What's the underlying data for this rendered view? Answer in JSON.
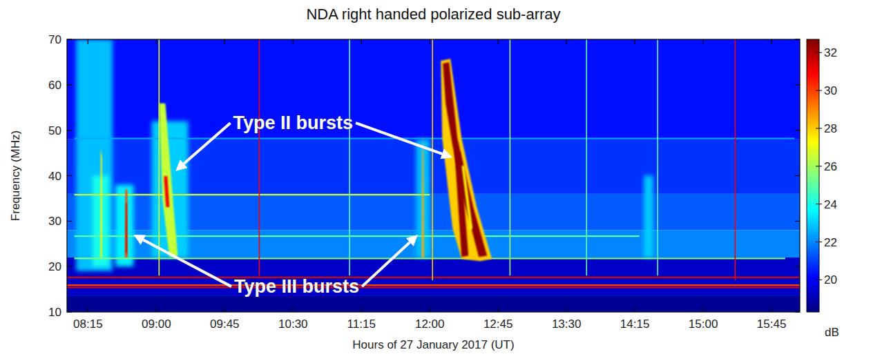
{
  "chart_data": {
    "type": "heatmap",
    "title": "NDA right handed polarized sub-array",
    "x_label": "Hours of 27 January 2017 (UT)",
    "y_label": "Frequency (MHz)",
    "xlim": [
      8.02,
      16.06
    ],
    "ylim": [
      10,
      70
    ],
    "xticks": [
      {
        "value": 8.25,
        "label": "08:15"
      },
      {
        "value": 9,
        "label": "09:00"
      },
      {
        "value": 9.75,
        "label": "09:45"
      },
      {
        "value": 10.5,
        "label": "10:30"
      },
      {
        "value": 11.25,
        "label": "11:15"
      },
      {
        "value": 12,
        "label": "12:00"
      },
      {
        "value": 12.75,
        "label": "12:45"
      },
      {
        "value": 13.5,
        "label": "13:30"
      },
      {
        "value": 14.25,
        "label": "14:15"
      },
      {
        "value": 15,
        "label": "15:00"
      },
      {
        "value": 15.75,
        "label": "15:45"
      }
    ],
    "yticks": [
      10,
      20,
      30,
      40,
      50,
      60,
      70
    ],
    "colorbar": {
      "label": "dB",
      "range": [
        18.3,
        32.7
      ],
      "ticks": [
        20,
        22,
        24,
        26,
        28,
        30,
        32
      ]
    },
    "bands": [
      {
        "f": [
          10,
          13.5
        ],
        "value": 18.6
      },
      {
        "f": [
          13.5,
          22
        ],
        "value": 19.3
      },
      {
        "f": [
          22,
          28
        ],
        "value": 22.0
      },
      {
        "f": [
          28,
          36
        ],
        "value": 21.4
      },
      {
        "f": [
          36,
          48
        ],
        "value": 20.8
      },
      {
        "f": [
          48,
          70
        ],
        "value": 20.3
      }
    ],
    "patches": [
      {
        "t": [
          8.12,
          8.52
        ],
        "f": [
          19,
          70
        ],
        "value": 22.8
      },
      {
        "t": [
          8.3,
          8.48
        ],
        "f": [
          20,
          40
        ],
        "value": 24.0
      },
      {
        "t": [
          8.55,
          8.75
        ],
        "f": [
          20,
          38
        ],
        "value": 23.5
      },
      {
        "t": [
          8.95,
          9.35
        ],
        "f": [
          22,
          52
        ],
        "value": 23.0
      },
      {
        "t": [
          11.85,
          12.0
        ],
        "f": [
          22,
          48
        ],
        "value": 22.8
      },
      {
        "t": [
          14.35,
          14.45
        ],
        "f": [
          22,
          40
        ],
        "value": 23.0
      }
    ],
    "hlines": [
      {
        "f": 15.4,
        "t": [
          8.02,
          16.06
        ],
        "value": 31.5
      },
      {
        "f": 15.9,
        "t": [
          8.02,
          16.06
        ],
        "value": 30.0
      },
      {
        "f": 17.6,
        "t": [
          8.02,
          16.06
        ],
        "value": 31.5
      },
      {
        "f": 21.8,
        "t": [
          8.1,
          15.9
        ],
        "value": 25.5
      },
      {
        "f": 26.7,
        "t": [
          8.1,
          14.3
        ],
        "value": 25.0
      },
      {
        "f": 35.8,
        "t": [
          8.1,
          12.0
        ],
        "value": 26.5
      },
      {
        "f": 48.2,
        "t": [
          8.1,
          16.0
        ],
        "value": 22.5
      }
    ],
    "vlines": [
      {
        "t": 9.03,
        "f": [
          18,
          70
        ],
        "value": 27.0
      },
      {
        "t": 10.13,
        "f": [
          18,
          70
        ],
        "value": 31.0
      },
      {
        "t": 11.12,
        "f": [
          18,
          70
        ],
        "value": 25.0
      },
      {
        "t": 12.03,
        "f": [
          17,
          70
        ],
        "value": 28.0
      },
      {
        "t": 12.88,
        "f": [
          18,
          70
        ],
        "value": 26.0
      },
      {
        "t": 13.72,
        "f": [
          18,
          70
        ],
        "value": 25.0
      },
      {
        "t": 14.5,
        "f": [
          18,
          70
        ],
        "value": 25.0
      },
      {
        "t": 15.35,
        "f": [
          17,
          70
        ],
        "value": 31.0
      }
    ],
    "bursts": [
      {
        "points": [
          [
            8.385,
            22
          ],
          [
            8.405,
            22
          ],
          [
            8.405,
            44
          ],
          [
            8.39,
            46
          ]
        ],
        "value": 27.5
      },
      {
        "points": [
          [
            8.655,
            22
          ],
          [
            8.685,
            22
          ],
          [
            8.682,
            37
          ],
          [
            8.66,
            37
          ]
        ],
        "value": 30.0
      },
      {
        "points": [
          [
            8.664,
            23
          ],
          [
            8.678,
            23
          ],
          [
            8.676,
            34
          ],
          [
            8.666,
            34
          ]
        ],
        "value": 32.0
      },
      {
        "points": [
          [
            9.031,
            55.9
          ],
          [
            9.099,
            55.9
          ],
          [
            9.189,
            33.1
          ],
          [
            9.235,
            22.4
          ],
          [
            9.144,
            22.1
          ],
          [
            9.068,
            34.6
          ]
        ],
        "value": 26.5
      },
      {
        "points": [
          [
            9.083,
            39.9
          ],
          [
            9.121,
            39.9
          ],
          [
            9.144,
            33.1
          ],
          [
            9.106,
            33.1
          ]
        ],
        "value": 31.0
      },
      {
        "points": [
          [
            11.912,
            22
          ],
          [
            11.938,
            22
          ],
          [
            11.932,
            44
          ],
          [
            11.925,
            49
          ],
          [
            11.918,
            44
          ]
        ],
        "value": 28.5
      },
      {
        "points": [
          [
            12.121,
            65.3
          ],
          [
            12.227,
            65.7
          ],
          [
            12.349,
            48.3
          ],
          [
            12.515,
            33.1
          ],
          [
            12.682,
            21.7
          ],
          [
            12.553,
            21.2
          ],
          [
            12.349,
            21.7
          ],
          [
            12.25,
            28.5
          ],
          [
            12.136,
            48.3
          ]
        ],
        "value": 28.0
      },
      {
        "points": [
          [
            12.144,
            64.7
          ],
          [
            12.212,
            65.0
          ],
          [
            12.303,
            48.3
          ],
          [
            12.477,
            33.1
          ],
          [
            12.629,
            22.4
          ],
          [
            12.538,
            22.1
          ],
          [
            12.455,
            28.5
          ],
          [
            12.349,
            36.1
          ],
          [
            12.25,
            46.7
          ],
          [
            12.174,
            55.9
          ]
        ],
        "value": 32.5
      },
      {
        "points": [
          [
            12.273,
            45.2
          ],
          [
            12.333,
            45.2
          ],
          [
            12.424,
            22.4
          ],
          [
            12.349,
            22.1
          ]
        ],
        "value": 32.5
      },
      {
        "points": [
          [
            12.349,
            42.2
          ],
          [
            12.379,
            42.2
          ],
          [
            12.47,
            28.5
          ],
          [
            12.44,
            27.8
          ]
        ],
        "value": 27.5
      }
    ],
    "annotations": [
      {
        "text": "Type II bursts",
        "at": [
          10.5,
          51.6
        ],
        "arrows": [
          [
            9.21,
            41.0
          ],
          [
            12.25,
            44.0
          ]
        ]
      },
      {
        "text": "Type III bursts",
        "at": [
          10.54,
          15.6
        ],
        "arrows": [
          [
            8.75,
            27.0
          ],
          [
            11.87,
            27.0
          ]
        ]
      }
    ]
  }
}
